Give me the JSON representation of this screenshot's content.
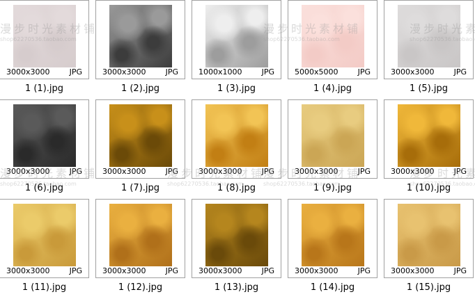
{
  "files": [
    {
      "name": "1 (1).jpg",
      "dims": "3000x3000",
      "type": "JPG",
      "colors": [
        "#e3dadb",
        "#d6cccd"
      ]
    },
    {
      "name": "1 (2).jpg",
      "dims": "3000x3000",
      "type": "JPG",
      "colors": [
        "#9a9a9a",
        "#3c3c3c"
      ]
    },
    {
      "name": "1 (3).jpg",
      "dims": "1000x1000",
      "type": "JPG",
      "colors": [
        "#eeeeee",
        "#9d9d9d"
      ]
    },
    {
      "name": "1 (4).jpg",
      "dims": "5000x5000",
      "type": "JPG",
      "colors": [
        "#fbe0dc",
        "#f3cbc6"
      ]
    },
    {
      "name": "1 (5).jpg",
      "dims": "3000x3000",
      "type": "JPG",
      "colors": [
        "#dedcdc",
        "#c9c6c6"
      ]
    },
    {
      "name": "1 (6).jpg",
      "dims": "3000x3000",
      "type": "JPG",
      "colors": [
        "#5a5a5a",
        "#2a2a2a"
      ]
    },
    {
      "name": "1 (7).jpg",
      "dims": "3000x3000",
      "type": "JPG",
      "colors": [
        "#c8901a",
        "#6b4a08"
      ]
    },
    {
      "name": "1 (8).jpg",
      "dims": "3000x3000",
      "type": "JPG",
      "colors": [
        "#f2c455",
        "#c27f14"
      ]
    },
    {
      "name": "1 (9).jpg",
      "dims": "3000x3000",
      "type": "JPG",
      "colors": [
        "#e8cc80",
        "#cba655"
      ]
    },
    {
      "name": "1 (10).jpg",
      "dims": "3000x3000",
      "type": "JPG",
      "colors": [
        "#f0b83a",
        "#a76d0a"
      ]
    },
    {
      "name": "1 (11).jpg",
      "dims": "3000x3000",
      "type": "JPG",
      "colors": [
        "#ebcb6a",
        "#c99a3a"
      ]
    },
    {
      "name": "1 (12).jpg",
      "dims": "3000x3000",
      "type": "JPG",
      "colors": [
        "#eab040",
        "#b0701a"
      ]
    },
    {
      "name": "1 (13).jpg",
      "dims": "3000x3000",
      "type": "JPG",
      "colors": [
        "#b5861e",
        "#6a4a0a"
      ]
    },
    {
      "name": "1 (14).jpg",
      "dims": "3000x3000",
      "type": "JPG",
      "colors": [
        "#eab040",
        "#b8761a"
      ]
    },
    {
      "name": "1 (15).jpg",
      "dims": "3000x3000",
      "type": "JPG",
      "colors": [
        "#e8c270",
        "#c99a48"
      ]
    }
  ],
  "watermark": {
    "text": "漫步时光素材铺",
    "shop": "shop62270536.taobao.com"
  }
}
